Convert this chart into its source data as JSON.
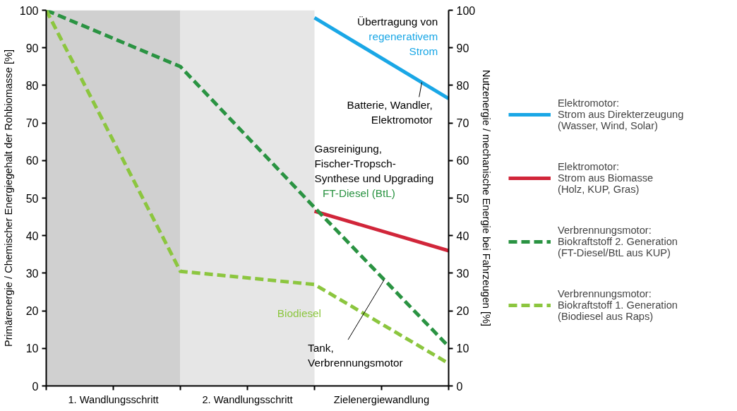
{
  "chart_data": {
    "type": "line",
    "ylabel": "Primärenergie / Chemischer Energiegehalt der Rohbiomasse [%]",
    "y2label": "Nutzenergie / mechanische Energie bei Fahrzeugen [%]",
    "x": [
      0,
      1,
      2,
      3
    ],
    "xlim": [
      0,
      3
    ],
    "xticks": [
      {
        "value": 0,
        "label": null
      },
      {
        "value": 0.5,
        "label": "1. Wandlungsschritt"
      },
      {
        "value": 1,
        "label": null
      },
      {
        "value": 1.5,
        "label": "2. Wandlungsschritt"
      },
      {
        "value": 2,
        "label": null
      },
      {
        "value": 2.5,
        "label": "Zielenergiewandlung"
      },
      {
        "value": 3,
        "label": null
      }
    ],
    "ylim": [
      0,
      100
    ],
    "yticks": [
      0,
      10,
      20,
      30,
      40,
      50,
      60,
      70,
      80,
      90,
      100
    ],
    "y2lim": [
      0,
      100
    ],
    "y2ticks": [
      0,
      10,
      20,
      30,
      40,
      50,
      60,
      70,
      80,
      90,
      100
    ],
    "grid": false,
    "legend": "right",
    "marker": "none",
    "series": [
      {
        "name": "Elektromotor:\nStrom aus Direkterzeugung\n(Wasser, Wind, Solar)",
        "color": "#1aa7e6",
        "line_style": "solid",
        "values": [
          null,
          null,
          98,
          76.5
        ]
      },
      {
        "name": "Elektromotor:\nStrom aus Biomasse\n(Holz, KUP, Gras)",
        "color": "#d1263a",
        "line_style": "solid",
        "values": [
          null,
          null,
          46.5,
          36
        ]
      },
      {
        "name": "Verbrennungsmotor:\nBiokraftstoff 2. Generation\n(FT-Diesel/BtL aus KUP)",
        "color": "#2a9342",
        "line_style": "dashed",
        "values": [
          100,
          85,
          47.5,
          10.5
        ]
      },
      {
        "name": "Verbrennungsmotor:\nBiokraftstoff 1. Generation\n(Biodiesel aus Raps)",
        "color": "#8cc63f",
        "line_style": "dashed",
        "values": [
          100,
          30.5,
          27,
          6
        ]
      }
    ],
    "bands": [
      {
        "axis": "x",
        "from": 0,
        "to": 1,
        "color": "#d0d0d0"
      },
      {
        "axis": "x",
        "from": 1,
        "to": 2,
        "color": "#e6e6e6"
      }
    ],
    "annotations": [
      "Übertragung von",
      "regenerativem\nStrom",
      {
        "text": "Batterie, Wandler,\nElektromotor",
        "x": 2.8,
        "y": 80.8
      },
      "Gasreinigung,\nFischer-Tropsch-\nSynthese und Upgrading",
      "FT-Diesel (BtL)",
      "Biodiesel",
      {
        "text": "Tank,\nVerbrennungsmotor",
        "x": 2.52,
        "y": 28.3
      }
    ]
  }
}
